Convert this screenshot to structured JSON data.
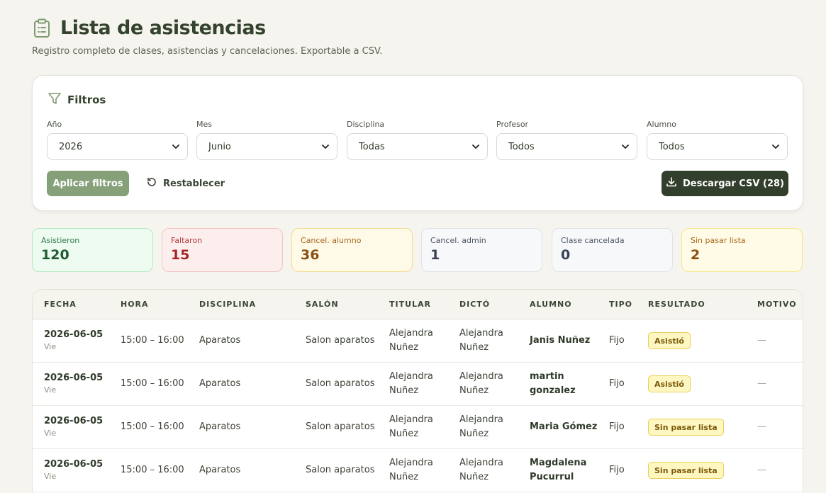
{
  "header": {
    "title": "Lista de asistencias",
    "subtitle": "Registro completo de clases, asistencias y cancelaciones. Exportable a CSV."
  },
  "filters": {
    "title": "Filtros",
    "fields": [
      {
        "label": "Año",
        "value": "2026"
      },
      {
        "label": "Mes",
        "value": "Junio"
      },
      {
        "label": "Disciplina",
        "value": "Todas"
      },
      {
        "label": "Profesor",
        "value": "Todos"
      },
      {
        "label": "Alumno",
        "value": "Todos"
      }
    ],
    "apply_label": "Aplicar filtros",
    "reset_label": "Restablecer",
    "csv_label": "Descargar CSV (28)"
  },
  "stats": [
    {
      "label": "Asistieron",
      "value": "120",
      "bg": "#eefbf1",
      "border": "#b6e8c2",
      "label_color": "#2d7a47",
      "value_color": "#1f5c33"
    },
    {
      "label": "Faltaron",
      "value": "15",
      "bg": "#fdeeee",
      "border": "#f2c2c2",
      "label_color": "#b23a3a",
      "value_color": "#a32626"
    },
    {
      "label": "Cancel. alumno",
      "value": "36",
      "bg": "#fff9e8",
      "border": "#f3dc8e",
      "label_color": "#a8661a",
      "value_color": "#8a4f12"
    },
    {
      "label": "Cancel. admin",
      "value": "1",
      "bg": "#f7f8fa",
      "border": "#dfe2e7",
      "label_color": "#4b5563",
      "value_color": "#374151"
    },
    {
      "label": "Clase cancelada",
      "value": "0",
      "bg": "#f7f8fa",
      "border": "#dfe2e7",
      "label_color": "#4b5563",
      "value_color": "#374151"
    },
    {
      "label": "Sin pasar lista",
      "value": "2",
      "bg": "#fffbe6",
      "border": "#f5e58a",
      "label_color": "#a8661a",
      "value_color": "#8a4f12"
    }
  ],
  "table": {
    "columns": [
      "FECHA",
      "HORA",
      "DISCIPLINA",
      "SALÓN",
      "TITULAR",
      "DICTÓ",
      "ALUMNO",
      "TIPO",
      "RESULTADO",
      "MOTIVO"
    ],
    "rows": [
      {
        "fecha": "2026-06-05",
        "dia": "Vie",
        "hora": "15:00 – 16:00",
        "disciplina": "Aparatos",
        "salon": "Salon aparatos",
        "titular": "Alejandra Nuñez",
        "dicto": "Alejandra Nuñez",
        "alumno": "Janis Nuñez",
        "tipo": "Fijo",
        "resultado": "Asistió",
        "motivo": "—"
      },
      {
        "fecha": "2026-06-05",
        "dia": "Vie",
        "hora": "15:00 – 16:00",
        "disciplina": "Aparatos",
        "salon": "Salon aparatos",
        "titular": "Alejandra Nuñez",
        "dicto": "Alejandra Nuñez",
        "alumno": "martin gonzalez",
        "tipo": "Fijo",
        "resultado": "Asistió",
        "motivo": "—"
      },
      {
        "fecha": "2026-06-05",
        "dia": "Vie",
        "hora": "15:00 – 16:00",
        "disciplina": "Aparatos",
        "salon": "Salon aparatos",
        "titular": "Alejandra Nuñez",
        "dicto": "Alejandra Nuñez",
        "alumno": "Maria Gómez",
        "tipo": "Fijo",
        "resultado": "Sin pasar lista",
        "motivo": "—"
      },
      {
        "fecha": "2026-06-05",
        "dia": "Vie",
        "hora": "15:00 – 16:00",
        "disciplina": "Aparatos",
        "salon": "Salon aparatos",
        "titular": "Alejandra Nuñez",
        "dicto": "Alejandra Nuñez",
        "alumno": "Magdalena Pucurrul",
        "tipo": "Fijo",
        "resultado": "Sin pasar lista",
        "motivo": "—"
      }
    ]
  }
}
